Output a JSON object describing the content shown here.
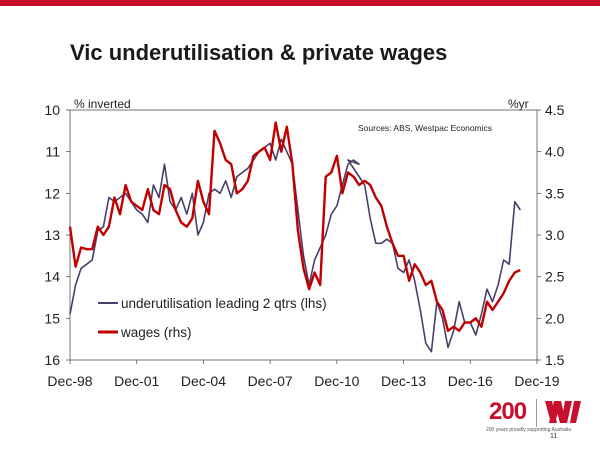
{
  "slide": {
    "title": "Vic underutilisation & private wages",
    "page_number": "11"
  },
  "brand": {
    "anniversary_text": "200",
    "tagline": "200 years proudly supporting Australia",
    "logo_icon": "westpac-w-logo",
    "accent_color": "#c8102e"
  },
  "chart_data": {
    "type": "line",
    "title": "",
    "source_note": "Sources: ABS, Westpac Economics",
    "left_axis": {
      "label": "% inverted",
      "inverted": true,
      "range": [
        10,
        16
      ],
      "ticks": [
        "10",
        "11",
        "12",
        "13",
        "14",
        "15",
        "16"
      ]
    },
    "right_axis": {
      "label": "%yr",
      "range": [
        1.5,
        4.5
      ],
      "ticks": [
        "4.5",
        "4.0",
        "3.5",
        "3.0",
        "2.5",
        "2.0",
        "1.5"
      ]
    },
    "x_axis": {
      "range": [
        "1998-12",
        "2019-12"
      ],
      "ticks": [
        "Dec-98",
        "Dec-01",
        "Dec-04",
        "Dec-07",
        "Dec-10",
        "Dec-13",
        "Dec-16",
        "Dec-19"
      ]
    },
    "legend_position": "bottom-left",
    "grid": false,
    "series": [
      {
        "name": "underutilisation leading 2 qtrs (lhs)",
        "axis": "left",
        "color": "#4a3f6b",
        "points": [
          [
            "1998-12",
            14.9
          ],
          [
            "1999-03",
            14.2
          ],
          [
            "1999-06",
            13.8
          ],
          [
            "1999-09",
            13.7
          ],
          [
            "1999-12",
            13.6
          ],
          [
            "2000-03",
            12.9
          ],
          [
            "2000-06",
            12.8
          ],
          [
            "2000-09",
            12.1
          ],
          [
            "2000-12",
            12.2
          ],
          [
            "2001-03",
            12.1
          ],
          [
            "2001-06",
            12.0
          ],
          [
            "2001-09",
            12.2
          ],
          [
            "2001-12",
            12.4
          ],
          [
            "2002-03",
            12.5
          ],
          [
            "2002-06",
            12.7
          ],
          [
            "2002-09",
            11.8
          ],
          [
            "2002-12",
            12.1
          ],
          [
            "2003-03",
            11.3
          ],
          [
            "2003-06",
            12.2
          ],
          [
            "2003-09",
            12.4
          ],
          [
            "2003-12",
            12.1
          ],
          [
            "2004-03",
            12.5
          ],
          [
            "2004-06",
            12.0
          ],
          [
            "2004-09",
            13.0
          ],
          [
            "2004-12",
            12.7
          ],
          [
            "2005-03",
            12.0
          ],
          [
            "2005-06",
            11.9
          ],
          [
            "2005-09",
            12.0
          ],
          [
            "2005-12",
            11.7
          ],
          [
            "2006-03",
            12.1
          ],
          [
            "2006-06",
            11.6
          ],
          [
            "2006-09",
            11.5
          ],
          [
            "2006-12",
            11.4
          ],
          [
            "2007-03",
            11.2
          ],
          [
            "2007-06",
            11.0
          ],
          [
            "2007-09",
            10.9
          ],
          [
            "2007-12",
            10.8
          ],
          [
            "2008-03",
            11.2
          ],
          [
            "2008-06",
            10.7
          ],
          [
            "2008-09",
            11.0
          ],
          [
            "2008-12",
            11.3
          ],
          [
            "2009-03",
            12.4
          ],
          [
            "2009-06",
            13.5
          ],
          [
            "2009-09",
            14.2
          ],
          [
            "2009-12",
            13.6
          ],
          [
            "2010-03",
            13.3
          ],
          [
            "2010-06",
            13.0
          ],
          [
            "2010-09",
            12.5
          ],
          [
            "2010-12",
            12.3
          ],
          [
            "2011-03",
            11.8
          ],
          [
            "2011-06",
            11.3
          ],
          [
            "2011-09",
            11.2
          ],
          [
            "2011-12",
            11.3
          ],
          [
            "2011-06",
            11.2
          ],
          [
            "2012-03",
            11.8
          ],
          [
            "2012-06",
            12.6
          ],
          [
            "2012-09",
            13.2
          ],
          [
            "2012-12",
            13.2
          ],
          [
            "2013-03",
            13.1
          ],
          [
            "2013-06",
            13.2
          ],
          [
            "2013-09",
            13.8
          ],
          [
            "2013-12",
            13.9
          ],
          [
            "2014-03",
            13.6
          ],
          [
            "2014-06",
            14.1
          ],
          [
            "2014-09",
            14.8
          ],
          [
            "2014-12",
            15.6
          ],
          [
            "2015-03",
            15.8
          ],
          [
            "2015-06",
            14.6
          ],
          [
            "2015-09",
            15.0
          ],
          [
            "2015-12",
            15.7
          ],
          [
            "2016-03",
            15.3
          ],
          [
            "2016-06",
            14.6
          ],
          [
            "2016-09",
            15.1
          ],
          [
            "2016-12",
            15.1
          ],
          [
            "2017-03",
            15.4
          ],
          [
            "2017-06",
            14.9
          ],
          [
            "2017-09",
            14.3
          ],
          [
            "2017-12",
            14.6
          ],
          [
            "2018-03",
            14.2
          ],
          [
            "2018-06",
            13.6
          ],
          [
            "2018-09",
            13.7
          ],
          [
            "2018-12",
            12.2
          ],
          [
            "2019-03",
            12.4
          ]
        ]
      },
      {
        "name": "wages (rhs)",
        "axis": "right",
        "color": "#c00000",
        "points": [
          [
            "1998-12",
            3.1
          ],
          [
            "1999-03",
            2.62
          ],
          [
            "1999-06",
            2.85
          ],
          [
            "1999-09",
            2.83
          ],
          [
            "1999-12",
            2.83
          ],
          [
            "2000-03",
            3.1
          ],
          [
            "2000-06",
            3.0
          ],
          [
            "2000-09",
            3.1
          ],
          [
            "2000-12",
            3.45
          ],
          [
            "2001-03",
            3.25
          ],
          [
            "2001-06",
            3.6
          ],
          [
            "2001-09",
            3.4
          ],
          [
            "2001-12",
            3.35
          ],
          [
            "2002-03",
            3.3
          ],
          [
            "2002-06",
            3.55
          ],
          [
            "2002-09",
            3.3
          ],
          [
            "2002-12",
            3.25
          ],
          [
            "2003-03",
            3.6
          ],
          [
            "2003-06",
            3.55
          ],
          [
            "2003-09",
            3.3
          ],
          [
            "2003-12",
            3.15
          ],
          [
            "2004-03",
            3.1
          ],
          [
            "2004-06",
            3.2
          ],
          [
            "2004-09",
            3.65
          ],
          [
            "2004-12",
            3.4
          ],
          [
            "2005-03",
            3.25
          ],
          [
            "2005-06",
            4.25
          ],
          [
            "2005-09",
            4.1
          ],
          [
            "2005-12",
            3.9
          ],
          [
            "2006-03",
            3.85
          ],
          [
            "2006-06",
            3.5
          ],
          [
            "2006-09",
            3.55
          ],
          [
            "2006-12",
            3.65
          ],
          [
            "2007-03",
            3.95
          ],
          [
            "2007-06",
            4.0
          ],
          [
            "2007-09",
            4.05
          ],
          [
            "2007-12",
            3.9
          ],
          [
            "2008-03",
            4.35
          ],
          [
            "2008-06",
            4.0
          ],
          [
            "2008-09",
            4.3
          ],
          [
            "2008-12",
            3.85
          ],
          [
            "2009-03",
            3.05
          ],
          [
            "2009-06",
            2.6
          ],
          [
            "2009-09",
            2.35
          ],
          [
            "2009-12",
            2.55
          ],
          [
            "2010-03",
            2.4
          ],
          [
            "2010-06",
            3.7
          ],
          [
            "2010-09",
            3.75
          ],
          [
            "2010-12",
            3.95
          ],
          [
            "2011-03",
            3.5
          ],
          [
            "2011-06",
            3.75
          ],
          [
            "2011-09",
            3.7
          ],
          [
            "2011-12",
            3.6
          ],
          [
            "2012-03",
            3.65
          ],
          [
            "2012-06",
            3.6
          ],
          [
            "2012-09",
            3.45
          ],
          [
            "2012-12",
            3.35
          ],
          [
            "2013-03",
            3.1
          ],
          [
            "2013-06",
            2.9
          ],
          [
            "2013-09",
            2.75
          ],
          [
            "2013-12",
            2.75
          ],
          [
            "2014-03",
            2.45
          ],
          [
            "2014-06",
            2.65
          ],
          [
            "2014-09",
            2.55
          ],
          [
            "2014-12",
            2.4
          ],
          [
            "2015-03",
            2.45
          ],
          [
            "2015-06",
            2.2
          ],
          [
            "2015-09",
            2.1
          ],
          [
            "2015-12",
            1.85
          ],
          [
            "2016-03",
            1.9
          ],
          [
            "2016-06",
            1.85
          ],
          [
            "2016-09",
            1.95
          ],
          [
            "2016-12",
            1.95
          ],
          [
            "2017-03",
            2.0
          ],
          [
            "2017-06",
            1.9
          ],
          [
            "2017-09",
            2.2
          ],
          [
            "2017-12",
            2.1
          ],
          [
            "2018-03",
            2.2
          ],
          [
            "2018-06",
            2.3
          ],
          [
            "2018-09",
            2.45
          ],
          [
            "2018-12",
            2.55
          ],
          [
            "2019-03",
            2.58
          ]
        ]
      }
    ]
  }
}
